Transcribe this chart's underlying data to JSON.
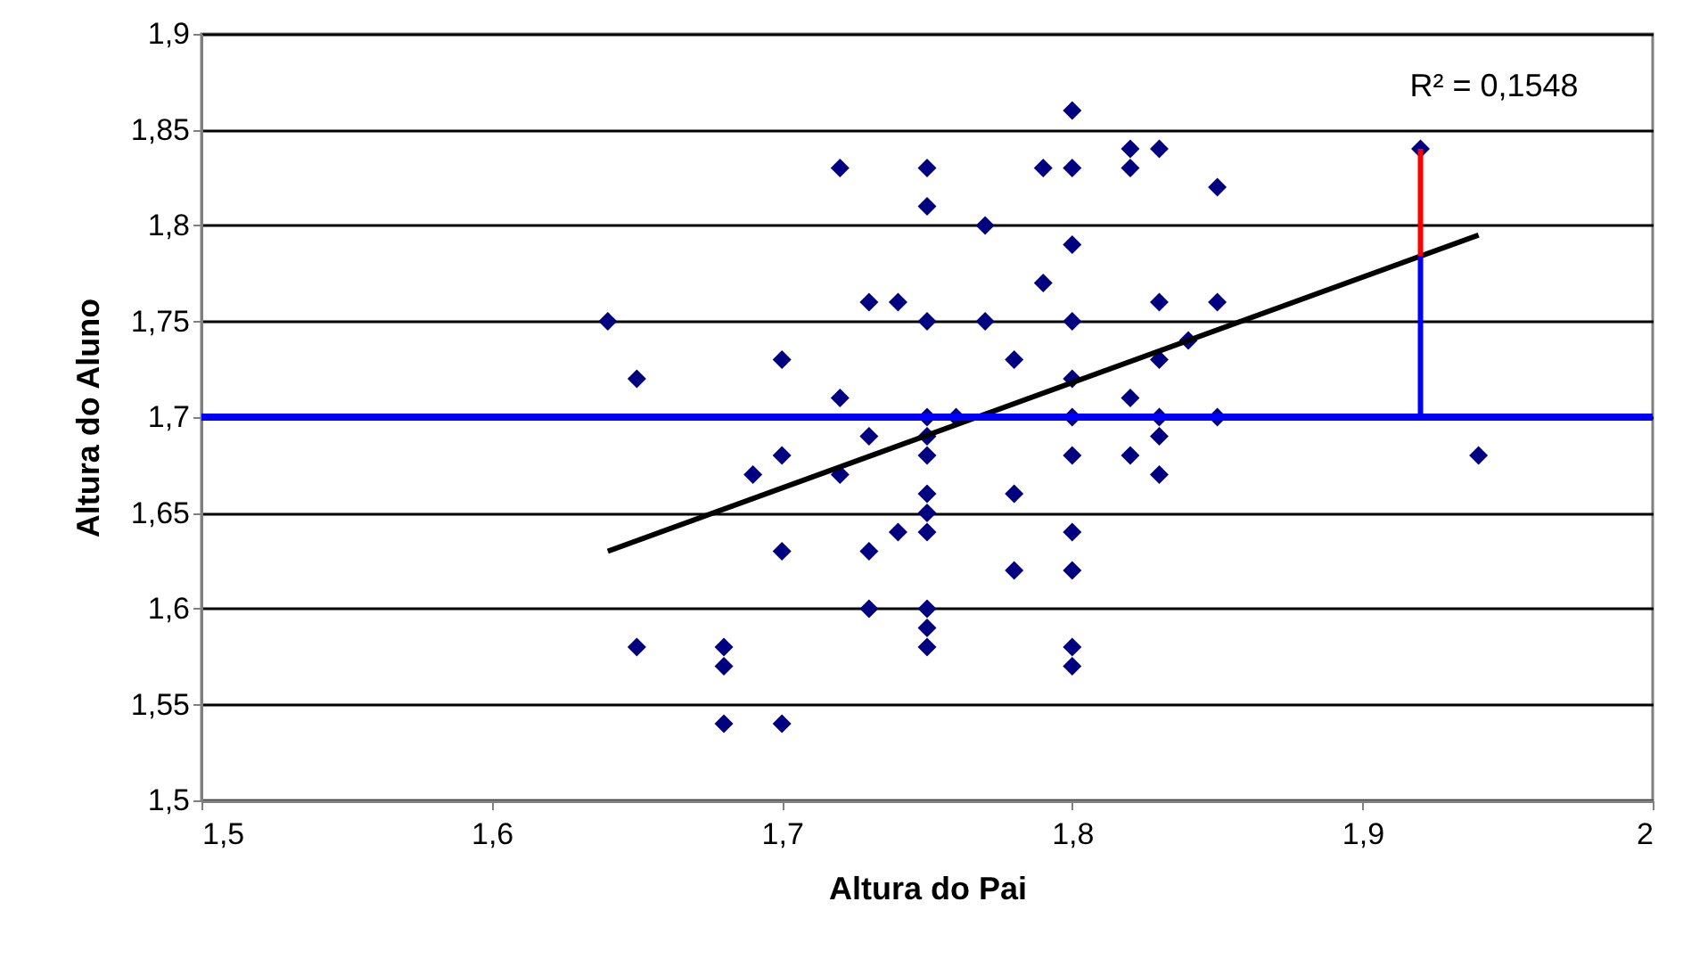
{
  "chart_data": {
    "type": "scatter",
    "xlabel": "Altura do Pai",
    "ylabel": "Altura do Aluno",
    "grid": "y",
    "xlim": [
      1.5,
      2
    ],
    "xticks": [
      {
        "value": 1.5,
        "label": "1,5"
      },
      {
        "value": 1.6,
        "label": "1,6"
      },
      {
        "value": 1.7,
        "label": "1,7"
      },
      {
        "value": 1.8,
        "label": "1,8"
      },
      {
        "value": 1.9,
        "label": "1,9"
      },
      {
        "value": 2,
        "label": "2"
      }
    ],
    "ylim": [
      1.5,
      1.9
    ],
    "yticks": [
      {
        "value": 1.5,
        "label": "1,5"
      },
      {
        "value": 1.55,
        "label": "1,55"
      },
      {
        "value": 1.6,
        "label": "1,6"
      },
      {
        "value": 1.65,
        "label": "1,65"
      },
      {
        "value": 1.7,
        "label": "1,7"
      },
      {
        "value": 1.75,
        "label": "1,75"
      },
      {
        "value": 1.8,
        "label": "1,8"
      },
      {
        "value": 1.85,
        "label": "1,85"
      },
      {
        "value": 1.9,
        "label": "1,9"
      }
    ],
    "annotations": [
      "R² = 0,1548"
    ],
    "ref_lines": [
      {
        "axis": "y",
        "value": 1.7,
        "color": "#0000ff"
      }
    ],
    "series": [
      {
        "marker": "diamond",
        "color": "#000080",
        "x": [
          1.64,
          1.65,
          1.65,
          1.68,
          1.68,
          1.68,
          1.69,
          1.7,
          1.7,
          1.7,
          1.7,
          1.72,
          1.72,
          1.72,
          1.73,
          1.73,
          1.73,
          1.73,
          1.74,
          1.74,
          1.75,
          1.75,
          1.75,
          1.75,
          1.75,
          1.75,
          1.75,
          1.75,
          1.75,
          1.75,
          1.75,
          1.75,
          1.76,
          1.77,
          1.77,
          1.78,
          1.78,
          1.78,
          1.79,
          1.79,
          1.8,
          1.8,
          1.8,
          1.8,
          1.8,
          1.8,
          1.8,
          1.8,
          1.8,
          1.8,
          1.8,
          1.82,
          1.82,
          1.82,
          1.82,
          1.83,
          1.83,
          1.83,
          1.83,
          1.83,
          1.83,
          1.84,
          1.85,
          1.85,
          1.85,
          1.92,
          1.94
        ],
        "values": [
          1.75,
          1.72,
          1.58,
          1.58,
          1.57,
          1.54,
          1.67,
          1.73,
          1.68,
          1.63,
          1.54,
          1.83,
          1.71,
          1.67,
          1.76,
          1.69,
          1.63,
          1.6,
          1.76,
          1.64,
          1.83,
          1.81,
          1.75,
          1.7,
          1.69,
          1.68,
          1.66,
          1.65,
          1.64,
          1.6,
          1.59,
          1.58,
          1.7,
          1.8,
          1.75,
          1.73,
          1.66,
          1.62,
          1.83,
          1.77,
          1.86,
          1.83,
          1.79,
          1.75,
          1.72,
          1.7,
          1.68,
          1.64,
          1.62,
          1.58,
          1.57,
          1.84,
          1.83,
          1.71,
          1.68,
          1.84,
          1.76,
          1.73,
          1.7,
          1.69,
          1.67,
          1.74,
          1.82,
          1.76,
          1.7,
          1.84,
          1.68
        ]
      },
      {
        "type": "line",
        "marker": "none",
        "color": "#000000",
        "x": [
          1.64,
          1.94
        ],
        "values": [
          1.63,
          1.795
        ]
      },
      {
        "type": "line",
        "marker": "none",
        "color": "#0000ff",
        "x": [
          1.92,
          1.92
        ],
        "values": [
          1.7,
          1.784
        ]
      },
      {
        "type": "line",
        "marker": "none",
        "color": "#ff0000",
        "x": [
          1.92,
          1.92
        ],
        "values": [
          1.784,
          1.84
        ]
      }
    ]
  }
}
